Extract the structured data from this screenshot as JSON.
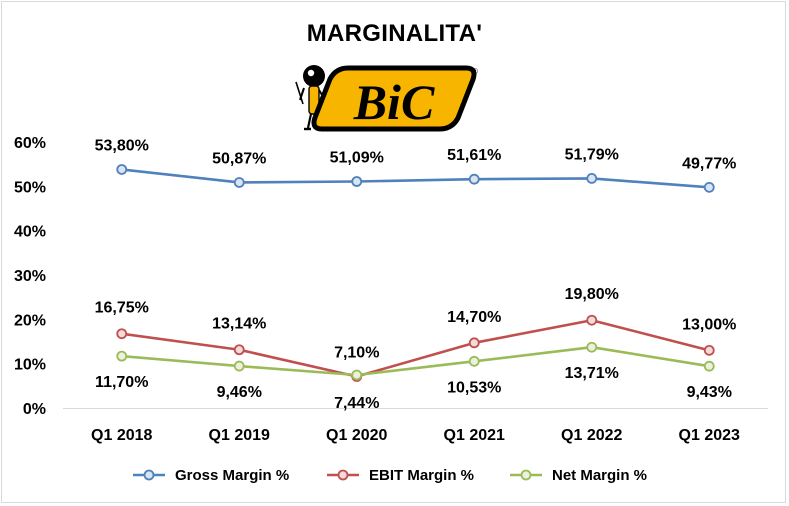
{
  "chart_data": {
    "type": "line",
    "title": "MARGINALITA'",
    "categories": [
      "Q1 2018",
      "Q1 2019",
      "Q1 2020",
      "Q1 2021",
      "Q1 2022",
      "Q1 2023"
    ],
    "ylim": [
      0,
      60
    ],
    "yticks": [
      "0%",
      "10%",
      "20%",
      "30%",
      "40%",
      "50%",
      "60%"
    ],
    "grid": false,
    "legend_position": "bottom",
    "series": [
      {
        "name": "Gross Margin %",
        "values": [
          53.8,
          50.87,
          51.09,
          51.61,
          51.79,
          49.77
        ],
        "labels": [
          "53,80%",
          "50,87%",
          "51,09%",
          "51,61%",
          "51,79%",
          "49,77%"
        ],
        "color": "#4f81bd",
        "marker_fill": "#dbe5f1"
      },
      {
        "name": "EBIT Margin %",
        "values": [
          16.75,
          13.14,
          7.1,
          14.7,
          19.8,
          13.0
        ],
        "labels": [
          "16,75%",
          "13,14%",
          "7,10%",
          "14,70%",
          "19,80%",
          "13,00%"
        ],
        "color": "#c0504d",
        "marker_fill": "#f2dcdb"
      },
      {
        "name": "Net Margin %",
        "values": [
          11.7,
          9.46,
          7.44,
          10.53,
          13.71,
          9.43
        ],
        "labels": [
          "11,70%",
          "9,46%",
          "7,44%",
          "10,53%",
          "13,71%",
          "9,43%"
        ],
        "color": "#9bbb59",
        "marker_fill": "#ebf1de"
      }
    ]
  },
  "logo": {
    "text": "BiC",
    "registered_mark": "®",
    "yellow": "#f7b500",
    "black": "#000000",
    "icon": "bic-boy-mascot-icon"
  }
}
